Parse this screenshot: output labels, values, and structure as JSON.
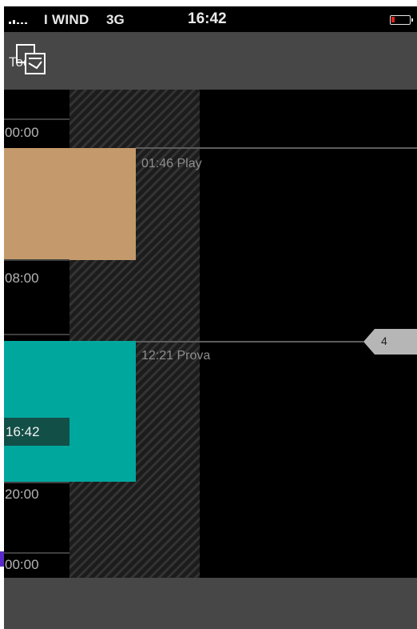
{
  "status_bar": {
    "carrier": "I WIND",
    "network": "3G",
    "time": "16:42"
  },
  "toolbar": {
    "today_label": "Today"
  },
  "timeline": {
    "hour_labels": [
      "00:00",
      "08:00",
      "20:00",
      "00:00"
    ],
    "current_time": "16:42",
    "events": [
      {
        "label": "01:46 Play",
        "color": "#c49a6c"
      },
      {
        "label": "12:21 Prova",
        "color": "#00a79d"
      }
    ],
    "event_count": "4"
  },
  "colors": {
    "battery_low": "#e4231c",
    "now_badge": "#124f47"
  }
}
